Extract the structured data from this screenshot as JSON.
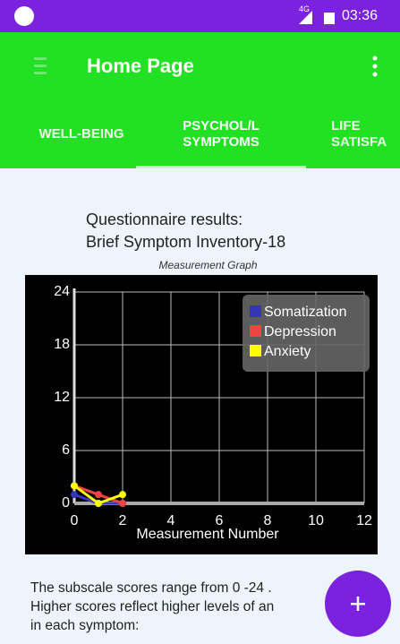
{
  "status_bar": {
    "network": "4G",
    "time": "03:36"
  },
  "app_bar": {
    "title": "Home Page"
  },
  "tabs": [
    {
      "lines": [
        "WELL-BEING"
      ]
    },
    {
      "lines": [
        "PSYCHOL/L",
        "SYMPTOMS"
      ]
    },
    {
      "lines": [
        "LIFE",
        "SATISFA"
      ]
    }
  ],
  "content": {
    "heading": [
      "Questionnaire results:",
      "Brief Symptom Inventory-18"
    ],
    "footer": [
      "The subscale scores range from 0 -24 .",
      "Higher scores reflect higher levels of an",
      "in each symptom:"
    ]
  },
  "chart_data": {
    "type": "line",
    "title": "Measurement Graph",
    "xlabel": "Measurement Number",
    "x": [
      0,
      1,
      2
    ],
    "series": [
      {
        "name": "Somatization",
        "color": "#3535b8",
        "values": [
          1,
          0,
          0
        ]
      },
      {
        "name": "Depression",
        "color": "#ee4444",
        "values": [
          2,
          1,
          0
        ]
      },
      {
        "name": "Anxiety",
        "color": "#ffff00",
        "values": [
          2,
          0,
          1
        ]
      }
    ],
    "xlim": [
      0,
      12
    ],
    "xticks": [
      0,
      2,
      4,
      6,
      8,
      10,
      12
    ],
    "ylim": [
      0,
      24
    ],
    "yticks": [
      0,
      6,
      12,
      18,
      24
    ],
    "grid": true,
    "legend": "top-right"
  }
}
